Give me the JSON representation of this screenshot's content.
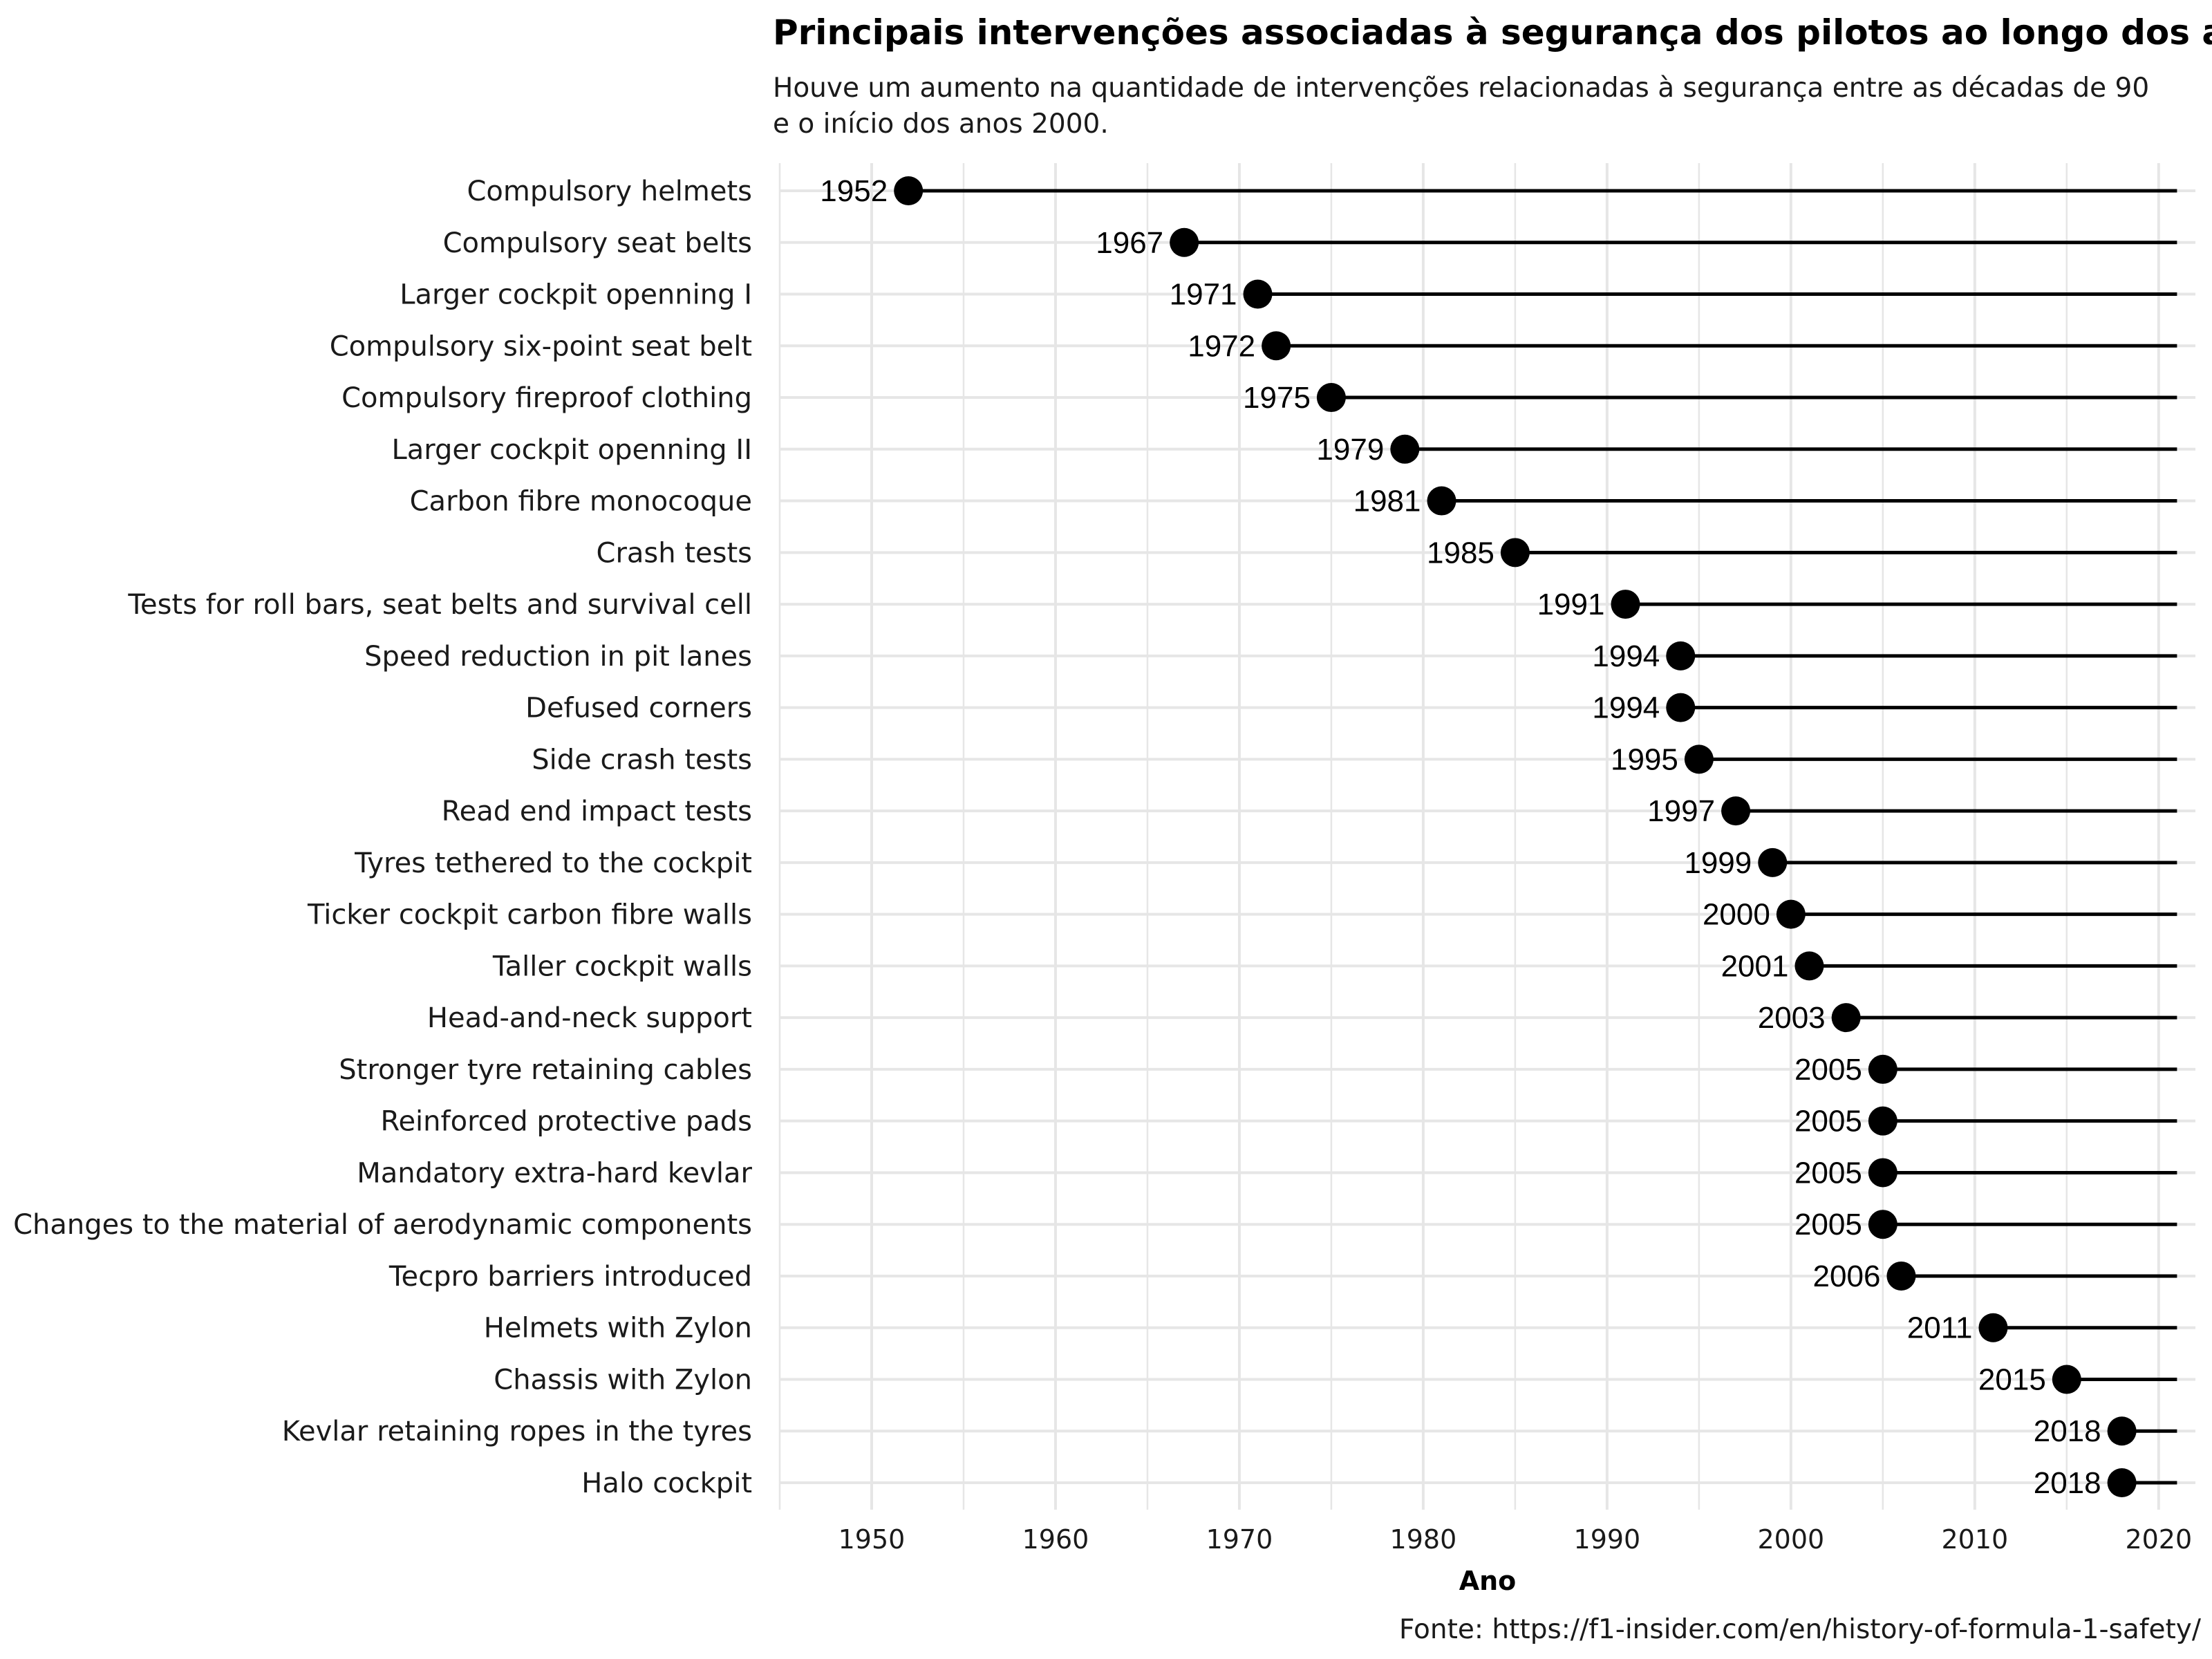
{
  "chart_data": {
    "type": "lollipop",
    "title": "Principais intervenções associadas à segurança dos pilotos ao longo dos anos",
    "subtitle_lines": [
      "Houve um aumento na quantidade de intervenções relacionadas à segurança entre as décadas de 90",
      "e o início dos anos 2000."
    ],
    "xlabel": "Ano",
    "caption": "Fonte: https://f1-insider.com/en/history-of-formula-1-safety/",
    "xlim": [
      1945,
      2022
    ],
    "line_end": 2021,
    "xticks": [
      1950,
      1960,
      1970,
      1980,
      1990,
      2000,
      2010,
      2020
    ],
    "grid": true,
    "categories": [
      "Compulsory helmets",
      "Compulsory seat belts",
      "Larger cockpit openning I",
      "Compulsory six-point seat belt",
      "Compulsory fireproof clothing",
      "Larger cockpit openning II",
      "Carbon fibre monocoque",
      "Crash tests",
      "Tests for roll bars, seat belts and survival cell",
      "Speed reduction in pit lanes",
      "Defused corners",
      "Side crash tests",
      "Read end impact tests",
      "Tyres tethered to the cockpit",
      "Ticker cockpit carbon fibre walls",
      "Taller cockpit walls",
      "Head-and-neck support",
      "Stronger tyre retaining cables",
      "Reinforced protective pads",
      "Mandatory extra-hard kevlar",
      "Changes to the material of aerodynamic components",
      "Tecpro barriers introduced",
      "Helmets with Zylon",
      "Chassis with Zylon",
      "Kevlar retaining ropes in the tyres",
      "Halo cockpit"
    ],
    "values": [
      1952,
      1967,
      1971,
      1972,
      1975,
      1979,
      1981,
      1985,
      1991,
      1994,
      1994,
      1995,
      1997,
      1999,
      2000,
      2001,
      2003,
      2005,
      2005,
      2005,
      2005,
      2006,
      2011,
      2015,
      2018,
      2018
    ],
    "colors": {
      "mark": "#000000",
      "grid": "#e6e6e6"
    }
  }
}
